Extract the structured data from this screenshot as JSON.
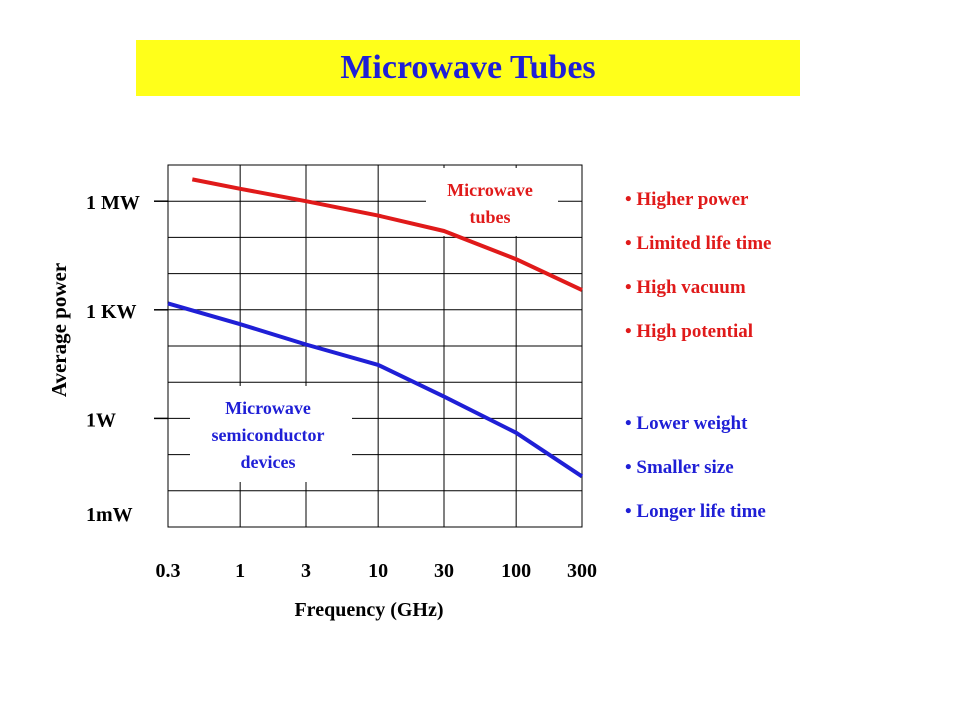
{
  "slide": {
    "title": "Microwave Tubes"
  },
  "colors": {
    "title_band": "#ffff1a",
    "title_text": "#1f1fd6",
    "tube_series": "#e01a1a",
    "semiconductor_series": "#1f1fd6",
    "grid": "#000000"
  },
  "chart_data": {
    "type": "line",
    "xlabel": "Frequency  (GHz)",
    "ylabel": "Average power",
    "x_scale": "log",
    "x_ticks": [
      {
        "value": 0.3,
        "label": "0.3"
      },
      {
        "value": 1,
        "label": "1"
      },
      {
        "value": 3,
        "label": "3"
      },
      {
        "value": 10,
        "label": "10"
      },
      {
        "value": 30,
        "label": "30"
      },
      {
        "value": 100,
        "label": "100"
      },
      {
        "value": 300,
        "label": "300"
      }
    ],
    "xlim": [
      0.3,
      300
    ],
    "y_unit": "W",
    "y_scale": "log",
    "y_ticks": [
      {
        "value": 0.001,
        "label": "1mW"
      },
      {
        "value": 1,
        "label": "1W"
      },
      {
        "value": 1000,
        "label": "1 KW"
      },
      {
        "value": 1000000,
        "label": "1 MW"
      }
    ],
    "ylim": [
      0.001,
      10000000
    ],
    "grid": true,
    "series": [
      {
        "key": "tubes",
        "label": [
          "Microwave",
          "tubes"
        ],
        "x": [
          0.45,
          1,
          3,
          10,
          30,
          100,
          300
        ],
        "y": [
          4000000,
          2200000,
          1000000,
          400000,
          150000,
          25000,
          3500
        ]
      },
      {
        "key": "semiconductors",
        "label": [
          "Microwave",
          "semiconductor",
          "devices"
        ],
        "x": [
          0.3,
          1,
          3,
          10,
          30,
          100,
          300
        ],
        "y": [
          1500,
          400,
          110,
          30,
          4,
          0.4,
          0.025
        ]
      }
    ]
  },
  "tube_properties": [
    "• Higher power",
    "• Limited life time",
    "• High vacuum",
    "• High potential"
  ],
  "semiconductor_properties": [
    "• Lower weight",
    "• Smaller size",
    "• Longer life time"
  ]
}
